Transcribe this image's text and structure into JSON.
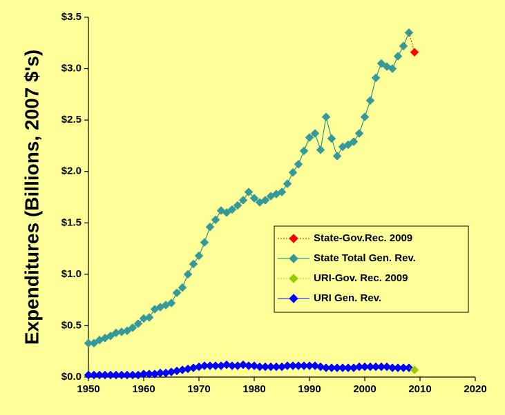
{
  "chart_data": {
    "type": "line",
    "title": "",
    "xlabel": "",
    "ylabel": "Expenditures (Billions, 2007 $'s)",
    "xlim": [
      1950,
      2020
    ],
    "ylim": [
      0,
      3.5
    ],
    "x_ticks": [
      1950,
      1960,
      1970,
      1980,
      1990,
      2000,
      2010,
      2020
    ],
    "x_tick_labels": [
      "1950",
      "1960",
      "1970",
      "1980",
      "1990",
      "2000",
      "2010",
      "2020"
    ],
    "y_ticks": [
      0,
      0.5,
      1.0,
      1.5,
      2.0,
      2.5,
      3.0,
      3.5
    ],
    "y_tick_labels": [
      "$0.0",
      "$0.5",
      "$1.0",
      "$1.5",
      "$2.0",
      "$2.5",
      "$3.0",
      "$3.5"
    ],
    "grid": false,
    "legend_position": "right",
    "series": [
      {
        "name": "State-Gov.Rec. 2009",
        "color": "#FF0000",
        "line_style": "dotted",
        "points": [
          [
            2008,
            3.35
          ],
          [
            2009,
            3.16
          ]
        ]
      },
      {
        "name": "State Total Gen. Rev.",
        "color": "#008080",
        "marker_color": "#339999",
        "line_style": "solid",
        "points": [
          [
            1950,
            0.33
          ],
          [
            1951,
            0.33
          ],
          [
            1952,
            0.36
          ],
          [
            1953,
            0.38
          ],
          [
            1954,
            0.4
          ],
          [
            1955,
            0.43
          ],
          [
            1956,
            0.44
          ],
          [
            1957,
            0.45
          ],
          [
            1958,
            0.48
          ],
          [
            1959,
            0.52
          ],
          [
            1960,
            0.57
          ],
          [
            1961,
            0.58
          ],
          [
            1962,
            0.66
          ],
          [
            1963,
            0.68
          ],
          [
            1964,
            0.7
          ],
          [
            1965,
            0.72
          ],
          [
            1966,
            0.82
          ],
          [
            1967,
            0.87
          ],
          [
            1968,
            1.0
          ],
          [
            1969,
            1.1
          ],
          [
            1970,
            1.18
          ],
          [
            1971,
            1.31
          ],
          [
            1972,
            1.46
          ],
          [
            1973,
            1.53
          ],
          [
            1974,
            1.62
          ],
          [
            1975,
            1.6
          ],
          [
            1976,
            1.63
          ],
          [
            1977,
            1.67
          ],
          [
            1978,
            1.72
          ],
          [
            1979,
            1.8
          ],
          [
            1980,
            1.74
          ],
          [
            1981,
            1.7
          ],
          [
            1982,
            1.72
          ],
          [
            1983,
            1.76
          ],
          [
            1984,
            1.78
          ],
          [
            1985,
            1.8
          ],
          [
            1986,
            1.88
          ],
          [
            1987,
            1.99
          ],
          [
            1988,
            2.07
          ],
          [
            1989,
            2.2
          ],
          [
            1990,
            2.33
          ],
          [
            1991,
            2.37
          ],
          [
            1992,
            2.21
          ],
          [
            1993,
            2.53
          ],
          [
            1994,
            2.32
          ],
          [
            1995,
            2.15
          ],
          [
            1996,
            2.24
          ],
          [
            1997,
            2.26
          ],
          [
            1998,
            2.29
          ],
          [
            1999,
            2.37
          ],
          [
            2000,
            2.53
          ],
          [
            2001,
            2.69
          ],
          [
            2002,
            2.91
          ],
          [
            2003,
            3.05
          ],
          [
            2004,
            3.02
          ],
          [
            2005,
            3.0
          ],
          [
            2006,
            3.12
          ],
          [
            2007,
            3.22
          ],
          [
            2008,
            3.35
          ]
        ]
      },
      {
        "name": "URI-Gov. Rec. 2009",
        "color": "#99CC00",
        "line_style": "dotted",
        "points": [
          [
            2008,
            0.09
          ],
          [
            2009,
            0.07
          ]
        ]
      },
      {
        "name": "URI Gen. Rev.",
        "color": "#0000FF",
        "line_style": "solid",
        "points": [
          [
            1950,
            0.02
          ],
          [
            1951,
            0.02
          ],
          [
            1952,
            0.02
          ],
          [
            1953,
            0.02
          ],
          [
            1954,
            0.02
          ],
          [
            1955,
            0.02
          ],
          [
            1956,
            0.02
          ],
          [
            1957,
            0.02
          ],
          [
            1958,
            0.02
          ],
          [
            1959,
            0.02
          ],
          [
            1960,
            0.03
          ],
          [
            1961,
            0.03
          ],
          [
            1962,
            0.03
          ],
          [
            1963,
            0.04
          ],
          [
            1964,
            0.04
          ],
          [
            1965,
            0.05
          ],
          [
            1966,
            0.06
          ],
          [
            1967,
            0.07
          ],
          [
            1968,
            0.08
          ],
          [
            1969,
            0.09
          ],
          [
            1970,
            0.1
          ],
          [
            1971,
            0.11
          ],
          [
            1972,
            0.11
          ],
          [
            1973,
            0.11
          ],
          [
            1974,
            0.11
          ],
          [
            1975,
            0.12
          ],
          [
            1976,
            0.11
          ],
          [
            1977,
            0.11
          ],
          [
            1978,
            0.12
          ],
          [
            1979,
            0.11
          ],
          [
            1980,
            0.11
          ],
          [
            1981,
            0.1
          ],
          [
            1982,
            0.1
          ],
          [
            1983,
            0.1
          ],
          [
            1984,
            0.1
          ],
          [
            1985,
            0.1
          ],
          [
            1986,
            0.11
          ],
          [
            1987,
            0.11
          ],
          [
            1988,
            0.11
          ],
          [
            1989,
            0.11
          ],
          [
            1990,
            0.11
          ],
          [
            1991,
            0.11
          ],
          [
            1992,
            0.1
          ],
          [
            1993,
            0.09
          ],
          [
            1994,
            0.09
          ],
          [
            1995,
            0.09
          ],
          [
            1996,
            0.09
          ],
          [
            1997,
            0.09
          ],
          [
            1998,
            0.09
          ],
          [
            1999,
            0.1
          ],
          [
            2000,
            0.1
          ],
          [
            2001,
            0.1
          ],
          [
            2002,
            0.1
          ],
          [
            2003,
            0.1
          ],
          [
            2004,
            0.1
          ],
          [
            2005,
            0.09
          ],
          [
            2006,
            0.09
          ],
          [
            2007,
            0.09
          ],
          [
            2008,
            0.09
          ]
        ]
      }
    ]
  }
}
